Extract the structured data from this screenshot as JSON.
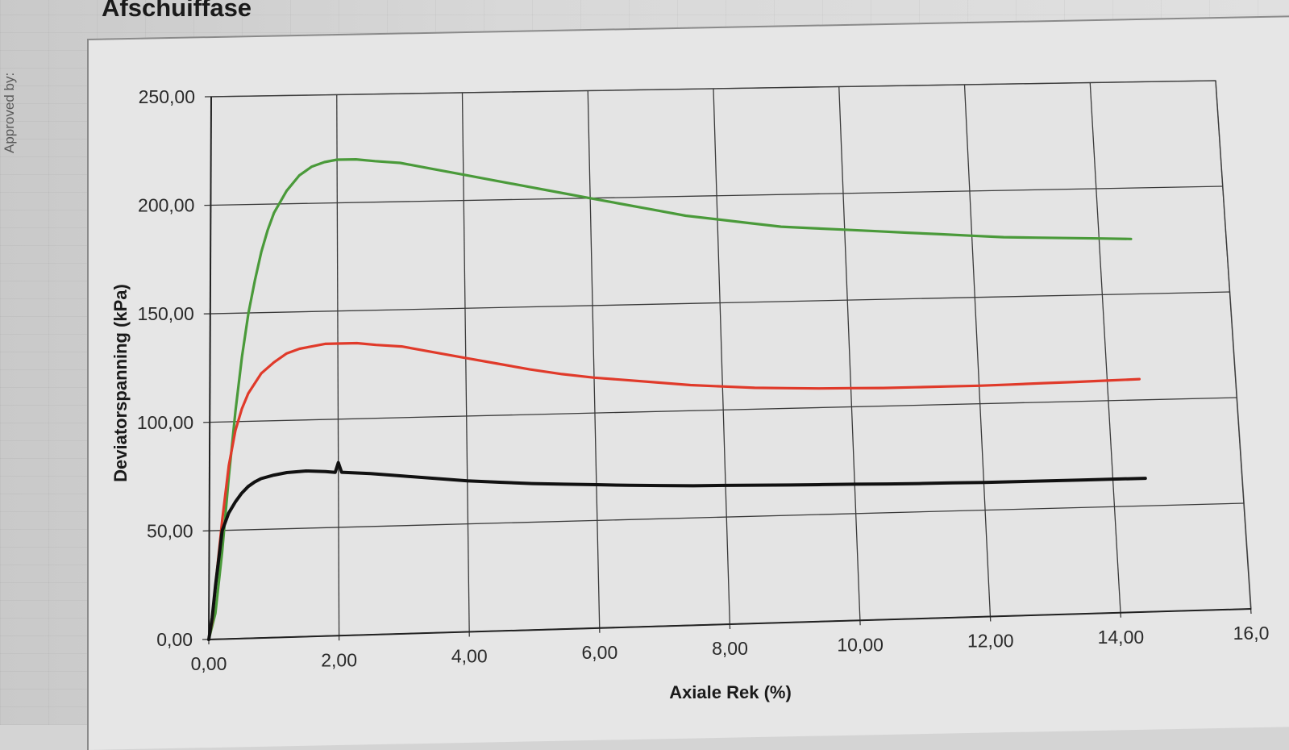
{
  "sheet": {
    "side_label": "Approved by:",
    "section_title": "Afschuiffase"
  },
  "chart_data": {
    "type": "line",
    "title": "",
    "xlabel": "Axiale Rek (%)",
    "ylabel": "Deviatorspanning (kPa)",
    "xlim": [
      0,
      16
    ],
    "ylim": [
      0,
      250
    ],
    "x_ticks": [
      0,
      2,
      4,
      6,
      8,
      10,
      12,
      14,
      16
    ],
    "x_tick_labels": [
      "0,00",
      "2,00",
      "4,00",
      "6,00",
      "8,00",
      "10,00",
      "12,00",
      "14,00",
      "16,0"
    ],
    "y_ticks": [
      0,
      50,
      100,
      150,
      200,
      250
    ],
    "y_tick_labels": [
      "0,00",
      "50,00",
      "100,00",
      "150,00",
      "200,00",
      "250,00"
    ],
    "grid": true,
    "legend": "none",
    "series": [
      {
        "color": "#4a9a3a",
        "points": [
          [
            0,
            0
          ],
          [
            0.1,
            12
          ],
          [
            0.2,
            40
          ],
          [
            0.3,
            75
          ],
          [
            0.4,
            105
          ],
          [
            0.5,
            130
          ],
          [
            0.6,
            150
          ],
          [
            0.7,
            165
          ],
          [
            0.8,
            178
          ],
          [
            0.9,
            188
          ],
          [
            1.0,
            196
          ],
          [
            1.2,
            206
          ],
          [
            1.4,
            213
          ],
          [
            1.6,
            217
          ],
          [
            1.8,
            219
          ],
          [
            2.0,
            220
          ],
          [
            2.3,
            220
          ],
          [
            2.6,
            219
          ],
          [
            3.0,
            218
          ],
          [
            3.5,
            215
          ],
          [
            4.0,
            212
          ],
          [
            4.5,
            209
          ],
          [
            5.0,
            206
          ],
          [
            5.5,
            203
          ],
          [
            6.0,
            200
          ],
          [
            6.5,
            197
          ],
          [
            7.0,
            194
          ],
          [
            7.5,
            191
          ],
          [
            8.0,
            189
          ],
          [
            8.5,
            187
          ],
          [
            9.0,
            185
          ],
          [
            9.5,
            184
          ],
          [
            10.0,
            183
          ],
          [
            10.5,
            182
          ],
          [
            11.0,
            181
          ],
          [
            11.5,
            180
          ],
          [
            12.0,
            179
          ],
          [
            12.5,
            178
          ],
          [
            13.0,
            177.5
          ],
          [
            13.5,
            177
          ],
          [
            14.0,
            176.5
          ],
          [
            14.5,
            176
          ]
        ]
      },
      {
        "color": "#e03a2a",
        "points": [
          [
            0,
            0
          ],
          [
            0.05,
            8
          ],
          [
            0.1,
            25
          ],
          [
            0.2,
            55
          ],
          [
            0.3,
            80
          ],
          [
            0.4,
            96
          ],
          [
            0.5,
            106
          ],
          [
            0.6,
            113
          ],
          [
            0.8,
            122
          ],
          [
            1.0,
            127
          ],
          [
            1.2,
            131
          ],
          [
            1.4,
            133
          ],
          [
            1.6,
            134
          ],
          [
            1.8,
            135
          ],
          [
            2.0,
            135
          ],
          [
            2.3,
            135
          ],
          [
            2.6,
            134
          ],
          [
            3.0,
            133
          ],
          [
            3.5,
            130
          ],
          [
            4.0,
            127
          ],
          [
            4.5,
            124
          ],
          [
            5.0,
            121
          ],
          [
            5.5,
            118.5
          ],
          [
            6.0,
            116.5
          ],
          [
            6.5,
            115
          ],
          [
            7.0,
            113.5
          ],
          [
            7.5,
            112
          ],
          [
            8.0,
            111
          ],
          [
            8.5,
            110
          ],
          [
            9.0,
            109.5
          ],
          [
            9.5,
            109
          ],
          [
            10.0,
            108.8
          ],
          [
            10.5,
            108.5
          ],
          [
            11.0,
            108.5
          ],
          [
            11.5,
            108.5
          ],
          [
            12.0,
            108.5
          ],
          [
            12.5,
            108.7
          ],
          [
            13.0,
            109
          ],
          [
            13.5,
            109.2
          ],
          [
            14.0,
            109.5
          ],
          [
            14.5,
            109.8
          ]
        ]
      },
      {
        "color": "#111111",
        "points": [
          [
            0,
            0
          ],
          [
            0.05,
            10
          ],
          [
            0.1,
            25
          ],
          [
            0.2,
            50
          ],
          [
            0.3,
            58
          ],
          [
            0.4,
            63
          ],
          [
            0.5,
            67
          ],
          [
            0.6,
            70
          ],
          [
            0.7,
            72
          ],
          [
            0.8,
            73.5
          ],
          [
            1.0,
            75
          ],
          [
            1.2,
            76
          ],
          [
            1.5,
            76.5
          ],
          [
            1.8,
            76
          ],
          [
            1.95,
            75.5
          ],
          [
            2.0,
            80
          ],
          [
            2.05,
            75.5
          ],
          [
            2.5,
            74.5
          ],
          [
            3.0,
            73
          ],
          [
            3.5,
            71.5
          ],
          [
            4.0,
            70
          ],
          [
            4.5,
            69
          ],
          [
            5.0,
            68
          ],
          [
            5.5,
            67.3
          ],
          [
            6.0,
            66.7
          ],
          [
            6.5,
            66
          ],
          [
            7.0,
            65.5
          ],
          [
            7.5,
            65
          ],
          [
            8.0,
            64.8
          ],
          [
            8.5,
            64.5
          ],
          [
            9.0,
            64.2
          ],
          [
            9.5,
            64
          ],
          [
            10.0,
            63.8
          ],
          [
            10.5,
            63.5
          ],
          [
            11.0,
            63.3
          ],
          [
            11.5,
            63.2
          ],
          [
            12.0,
            63
          ],
          [
            12.5,
            63
          ],
          [
            13.0,
            63
          ],
          [
            13.5,
            63
          ],
          [
            14.0,
            63
          ],
          [
            14.5,
            63
          ]
        ]
      }
    ]
  }
}
